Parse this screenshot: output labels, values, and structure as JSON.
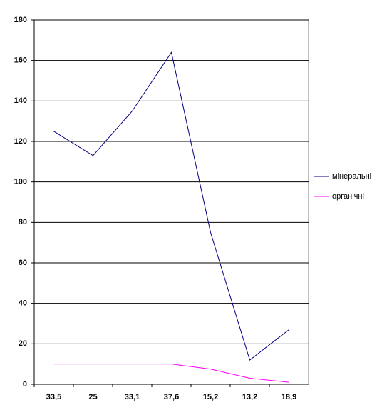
{
  "chart_data": {
    "type": "line",
    "categories": [
      "33,5",
      "25",
      "33,1",
      "37,6",
      "15,2",
      "13,2",
      "18,9"
    ],
    "series": [
      {
        "name": "мінеральні",
        "color": "#000080",
        "values": [
          125,
          113,
          135,
          164,
          75,
          12,
          27
        ]
      },
      {
        "name": "органічні",
        "color": "#ff00ff",
        "values": [
          10,
          10,
          10,
          10,
          7.5,
          3,
          1
        ]
      }
    ],
    "ylim": [
      0,
      180
    ],
    "yticks": [
      0,
      20,
      40,
      60,
      80,
      100,
      120,
      140,
      160,
      180
    ],
    "grid": true,
    "legend": "right"
  }
}
